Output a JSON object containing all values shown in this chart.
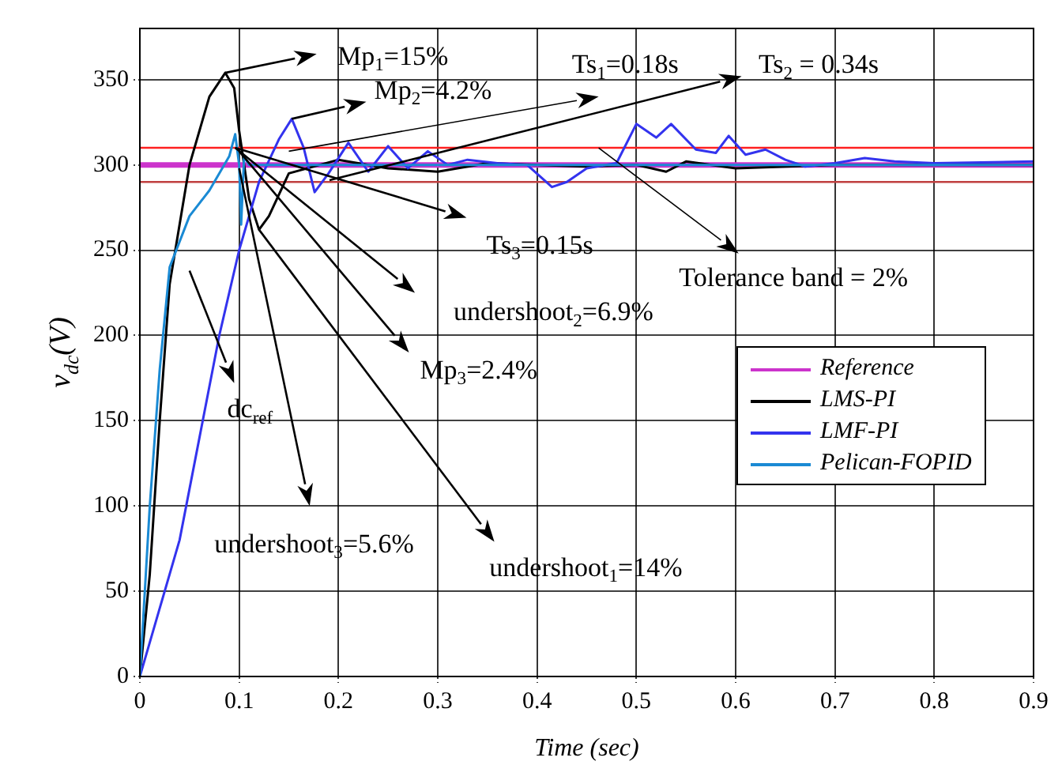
{
  "chart_data": {
    "type": "line",
    "xlabel": "Time (sec)",
    "ylabel": "v$_{dc}$(V)",
    "xlim": [
      0,
      0.9
    ],
    "xticks": [
      0,
      0.1,
      0.2,
      0.3,
      0.4,
      0.5,
      0.6,
      0.7,
      0.8,
      0.9
    ],
    "ylim": [
      0,
      380
    ],
    "yticks": [
      0,
      50,
      100,
      150,
      200,
      250,
      300,
      350
    ],
    "grid": true,
    "legend": "right",
    "marker": "none",
    "line_style": "solid",
    "series": [
      {
        "name": "Reference",
        "color": "#cc33cc",
        "x": [
          0,
          0.9
        ],
        "values": [
          300,
          300
        ]
      },
      {
        "name": "LMS-PI",
        "color": "#000000",
        "x": [
          0,
          0.01,
          0.02,
          0.03,
          0.05,
          0.07,
          0.086,
          0.095,
          0.1,
          0.11,
          0.12,
          0.13,
          0.15,
          0.2,
          0.25,
          0.3,
          0.35,
          0.4,
          0.45,
          0.5,
          0.53,
          0.55,
          0.6,
          0.7,
          0.9
        ],
        "values": [
          0,
          60,
          150,
          230,
          300,
          340,
          354,
          345,
          320,
          280,
          262,
          270,
          295,
          303,
          298,
          296,
          301,
          300,
          299,
          300,
          296,
          302,
          298,
          300,
          300
        ]
      },
      {
        "name": "LMF-PI",
        "color": "#3333ee",
        "x": [
          0,
          0.02,
          0.04,
          0.06,
          0.08,
          0.1,
          0.12,
          0.14,
          0.153,
          0.165,
          0.176,
          0.19,
          0.21,
          0.23,
          0.25,
          0.27,
          0.29,
          0.31,
          0.33,
          0.36,
          0.39,
          0.415,
          0.43,
          0.45,
          0.48,
          0.5,
          0.52,
          0.535,
          0.56,
          0.58,
          0.593,
          0.61,
          0.63,
          0.65,
          0.67,
          0.7,
          0.73,
          0.76,
          0.8,
          0.9
        ],
        "values": [
          0,
          40,
          80,
          140,
          200,
          250,
          290,
          315,
          327,
          310,
          284,
          295,
          313,
          296,
          311,
          298,
          308,
          300,
          303,
          301,
          300,
          287,
          290,
          298,
          301,
          324,
          316,
          324,
          309,
          307,
          317,
          306,
          309,
          303,
          299,
          301,
          304,
          302,
          301,
          302
        ]
      },
      {
        "name": "Pelican-FOPID",
        "color": "#1a8ad4",
        "x": [
          0,
          0.01,
          0.02,
          0.03,
          0.05,
          0.07,
          0.09,
          0.096,
          0.1,
          0.102,
          0.105,
          0.11,
          0.15,
          0.3,
          0.5,
          0.7,
          0.9
        ],
        "values": [
          0,
          100,
          180,
          240,
          270,
          285,
          305,
          318,
          300,
          265,
          305,
          300,
          300,
          300,
          300,
          300,
          300
        ]
      }
    ],
    "ref_lines": [
      {
        "axis": "y",
        "value": 310,
        "color": "#ff2020"
      },
      {
        "axis": "y",
        "value": 290,
        "color": "#c04040"
      }
    ],
    "annotations": [
      "Mp$_{1}$=15%",
      {
        "text": "Mp$_{2}$=4.2%",
        "x": 0.153,
        "y": 327
      },
      {
        "text": "Ts$_{1}$=0.18s",
        "x": 0.15,
        "y": 308
      },
      "Ts$_{2}$ = 0.34s",
      "Ts$_{3}$=0.15s",
      {
        "text": "Tolerance band = 2%",
        "x": 0.462,
        "y": 310
      },
      "undershoot$_{2}$=6.9%",
      {
        "text": "Mp$_{3}$=2.4%",
        "x": 0.1,
        "y": 308
      },
      "dc$_{ref}$",
      "undershoot$_{3}$=5.6%",
      {
        "text": "undershoot$_{1}$=14%",
        "x": 0.12,
        "y": 262
      }
    ]
  }
}
